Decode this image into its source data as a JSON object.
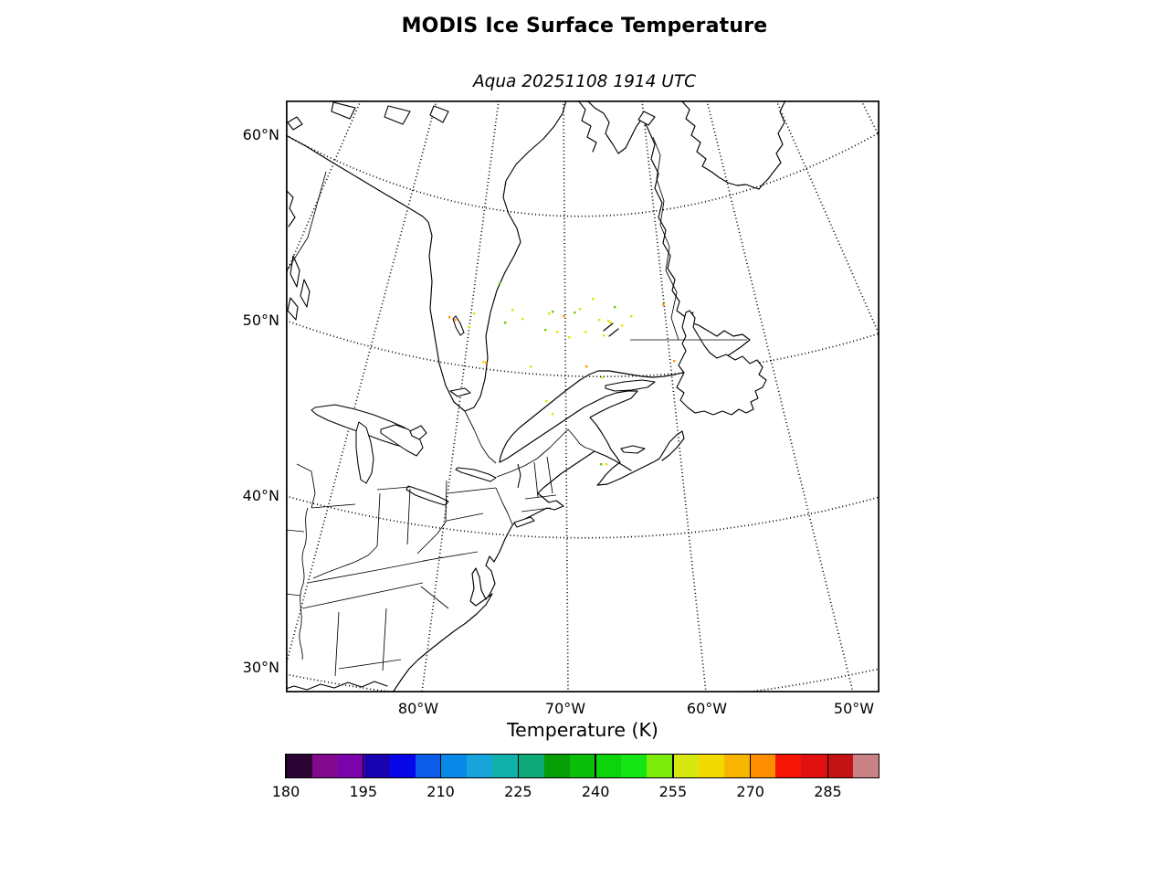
{
  "figure": {
    "title": "MODIS Ice Surface Temperature",
    "subtitle": "Aqua 20251108 1914 UTC"
  },
  "map": {
    "lat_labels": [
      "60°N",
      "50°N",
      "40°N",
      "30°N"
    ],
    "lon_labels": [
      "80°W",
      "70°W",
      "60°W",
      "50°W"
    ]
  },
  "colorbar": {
    "label": "Temperature (K)",
    "min": 180,
    "max": 295,
    "tick_values": [
      180,
      195,
      210,
      225,
      240,
      255,
      270,
      285
    ],
    "segment_colors": [
      "#2d0534",
      "#810a8f",
      "#7a03ab",
      "#1704b0",
      "#0707e8",
      "#0b5ce8",
      "#0a88e8",
      "#17a4d9",
      "#12b0ab",
      "#0fa877",
      "#089e08",
      "#09bd09",
      "#0cd30c",
      "#15e515",
      "#7deb0c",
      "#d6e810",
      "#f2da00",
      "#f7b500",
      "#fc8e00",
      "#f51505",
      "#e11111",
      "#c21213",
      "#c98185"
    ]
  },
  "ice_pixels": {
    "palette": {
      "o": "#ff9800",
      "y": "#e3e300",
      "g": "#66cc00"
    },
    "points": [
      [
        178,
        236,
        "o"
      ],
      [
        184,
        239,
        "o"
      ],
      [
        199,
        247,
        "y"
      ],
      [
        205,
        232,
        "y"
      ],
      [
        215,
        285,
        "y"
      ],
      [
        218,
        286,
        "o"
      ],
      [
        233,
        199,
        "g"
      ],
      [
        239,
        242,
        "g"
      ],
      [
        247,
        228,
        "y"
      ],
      [
        258,
        238,
        "y"
      ],
      [
        267,
        290,
        "y"
      ],
      [
        283,
        250,
        "g"
      ],
      [
        287,
        232,
        "y"
      ],
      [
        291,
        230,
        "g"
      ],
      [
        296,
        252,
        "y"
      ],
      [
        303,
        235,
        "o"
      ],
      [
        309,
        258,
        "y"
      ],
      [
        315,
        231,
        "g"
      ],
      [
        321,
        227,
        "y"
      ],
      [
        327,
        252,
        "y"
      ],
      [
        335,
        216,
        "y"
      ],
      [
        342,
        239,
        "y"
      ],
      [
        347,
        256,
        "y"
      ],
      [
        352,
        240,
        "y"
      ],
      [
        354,
        242,
        "y"
      ],
      [
        359,
        225,
        "g"
      ],
      [
        367,
        245,
        "y"
      ],
      [
        377,
        235,
        "y"
      ],
      [
        328,
        290,
        "o"
      ],
      [
        345,
        302,
        "y"
      ],
      [
        412,
        222,
        "o"
      ],
      [
        424,
        284,
        "o"
      ],
      [
        344,
        397,
        "g"
      ],
      [
        350,
        397,
        "y"
      ],
      [
        284,
        328,
        "y"
      ],
      [
        291,
        342,
        "y"
      ]
    ]
  },
  "chart_data": {
    "type": "heatmap",
    "title": "MODIS Ice Surface Temperature",
    "subtitle": "Aqua 20251108 1914 UTC",
    "colorbar_label": "Temperature (K)",
    "colorbar_range": [
      180,
      295
    ],
    "colorbar_segment_step": 5,
    "colorbar_ticks": [
      180,
      195,
      210,
      225,
      240,
      255,
      270,
      285
    ],
    "x_tick_labels": [
      "80°W",
      "70°W",
      "60°W",
      "50°W"
    ],
    "y_tick_labels": [
      "60°N",
      "50°N",
      "40°N",
      "30°N"
    ],
    "legend_position": "bottom",
    "grid": "dotted graticule, 10-degree spacing"
  }
}
